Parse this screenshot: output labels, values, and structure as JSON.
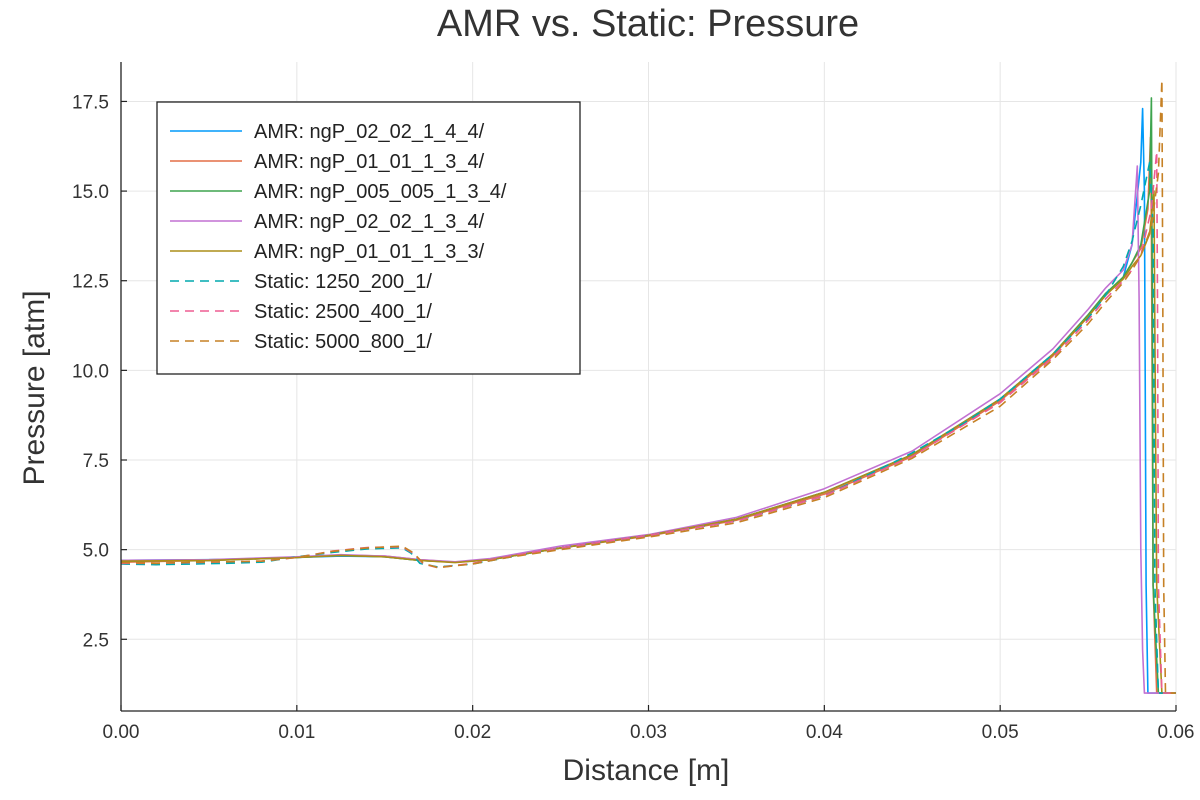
{
  "chart_data": {
    "type": "line",
    "title": "AMR vs. Static: Pressure",
    "xlabel": "Distance [m]",
    "ylabel": "Pressure [atm]",
    "xlim": [
      0.0,
      0.06
    ],
    "ylim": [
      0.5,
      18.6
    ],
    "xticks": [
      "0.00",
      "0.01",
      "0.02",
      "0.03",
      "0.04",
      "0.05",
      "0.06"
    ],
    "yticks": [
      "2.5",
      "5.0",
      "7.5",
      "10.0",
      "12.5",
      "15.0",
      "17.5"
    ],
    "grid": true,
    "legend_position": "top-left",
    "series": [
      {
        "name": "AMR: ngP_02_02_1_4_4/",
        "color": "#009AFA",
        "dash": "solid",
        "x": [
          0.0,
          0.005,
          0.01,
          0.0125,
          0.015,
          0.017,
          0.019,
          0.021,
          0.025,
          0.03,
          0.035,
          0.04,
          0.045,
          0.05,
          0.053,
          0.055,
          0.056,
          0.057,
          0.0575,
          0.058,
          0.0581,
          0.0582,
          0.0583,
          0.0584,
          0.0587,
          0.06
        ],
        "y": [
          4.7,
          4.72,
          4.78,
          4.82,
          4.8,
          4.7,
          4.65,
          4.72,
          5.05,
          5.4,
          5.85,
          6.6,
          7.65,
          9.2,
          10.45,
          11.5,
          12.1,
          12.6,
          13.5,
          15.8,
          17.3,
          15.0,
          4.0,
          1.0,
          1.0,
          1.0
        ]
      },
      {
        "name": "AMR: ngP_01_01_1_3_4/",
        "color": "#E36F47",
        "dash": "solid",
        "x": [
          0.0,
          0.005,
          0.01,
          0.0125,
          0.015,
          0.017,
          0.019,
          0.021,
          0.025,
          0.03,
          0.035,
          0.04,
          0.045,
          0.05,
          0.053,
          0.055,
          0.056,
          0.057,
          0.0575,
          0.058,
          0.0584,
          0.05855,
          0.0586,
          0.0587,
          0.0589,
          0.06
        ],
        "y": [
          4.65,
          4.7,
          4.78,
          4.85,
          4.82,
          4.72,
          4.65,
          4.72,
          5.05,
          5.38,
          5.82,
          6.55,
          7.6,
          9.15,
          10.4,
          11.5,
          12.1,
          12.6,
          13.0,
          13.4,
          14.5,
          16.5,
          14.0,
          4.0,
          1.0,
          1.0
        ]
      },
      {
        "name": "AMR: ngP_005_005_1_3_4/",
        "color": "#3EA44E",
        "dash": "solid",
        "x": [
          0.0,
          0.005,
          0.01,
          0.0125,
          0.015,
          0.017,
          0.019,
          0.021,
          0.025,
          0.03,
          0.035,
          0.04,
          0.045,
          0.05,
          0.053,
          0.055,
          0.056,
          0.057,
          0.0575,
          0.058,
          0.0585,
          0.0586,
          0.05865,
          0.0587,
          0.059,
          0.06
        ],
        "y": [
          4.68,
          4.7,
          4.78,
          4.84,
          4.8,
          4.7,
          4.65,
          4.72,
          5.05,
          5.4,
          5.85,
          6.6,
          7.65,
          9.2,
          10.45,
          11.55,
          12.15,
          12.6,
          13.0,
          13.5,
          15.0,
          17.6,
          12.0,
          4.0,
          1.0,
          1.0
        ]
      },
      {
        "name": "AMR: ngP_02_02_1_3_4/",
        "color": "#C271D2",
        "dash": "solid",
        "x": [
          0.0,
          0.005,
          0.01,
          0.0125,
          0.015,
          0.017,
          0.019,
          0.021,
          0.025,
          0.03,
          0.035,
          0.04,
          0.045,
          0.05,
          0.053,
          0.055,
          0.056,
          0.057,
          0.0575,
          0.0578,
          0.0579,
          0.058,
          0.0581,
          0.0582,
          0.0585,
          0.06
        ],
        "y": [
          4.7,
          4.72,
          4.8,
          4.86,
          4.82,
          4.72,
          4.66,
          4.75,
          5.1,
          5.42,
          5.9,
          6.7,
          7.75,
          9.35,
          10.6,
          11.7,
          12.3,
          12.8,
          13.5,
          15.7,
          12.0,
          5.0,
          2.2,
          1.0,
          1.0,
          1.0
        ]
      },
      {
        "name": "AMR: ngP_01_01_1_3_3/",
        "color": "#AC8D18",
        "dash": "solid",
        "x": [
          0.0,
          0.005,
          0.01,
          0.0125,
          0.015,
          0.017,
          0.019,
          0.021,
          0.025,
          0.03,
          0.035,
          0.04,
          0.045,
          0.05,
          0.053,
          0.055,
          0.056,
          0.057,
          0.0575,
          0.058,
          0.0585,
          0.05875,
          0.0588,
          0.0589,
          0.0592,
          0.06
        ],
        "y": [
          4.68,
          4.7,
          4.78,
          4.84,
          4.8,
          4.7,
          4.64,
          4.72,
          5.05,
          5.4,
          5.85,
          6.6,
          7.65,
          9.2,
          10.45,
          11.5,
          12.1,
          12.55,
          12.9,
          13.2,
          13.8,
          15.0,
          11.0,
          4.0,
          1.0,
          1.0
        ]
      },
      {
        "name": "Static: 1250_200_1/",
        "color": "#00A9AD",
        "dash": "dashed",
        "x": [
          0.0,
          0.002,
          0.004,
          0.006,
          0.008,
          0.01,
          0.012,
          0.014,
          0.016,
          0.0165,
          0.017,
          0.018,
          0.02,
          0.022,
          0.025,
          0.03,
          0.035,
          0.04,
          0.044,
          0.045,
          0.048,
          0.05,
          0.053,
          0.055,
          0.056,
          0.057,
          0.0575,
          0.058,
          0.0585,
          0.0587,
          0.0588,
          0.059,
          0.06
        ],
        "y": [
          4.6,
          4.58,
          4.6,
          4.62,
          4.65,
          4.8,
          4.92,
          5.02,
          5.05,
          4.9,
          4.62,
          4.52,
          4.6,
          4.78,
          5.05,
          5.4,
          5.8,
          6.5,
          7.45,
          7.7,
          8.55,
          9.2,
          10.45,
          11.45,
          12.1,
          12.9,
          13.6,
          14.6,
          15.8,
          14.0,
          4.0,
          1.0,
          1.0
        ]
      },
      {
        "name": "Static: 2500_400_1/",
        "color": "#ED5D92",
        "dash": "dashed",
        "x": [
          0.0,
          0.002,
          0.004,
          0.006,
          0.008,
          0.01,
          0.012,
          0.014,
          0.016,
          0.0166,
          0.0172,
          0.018,
          0.02,
          0.022,
          0.025,
          0.03,
          0.035,
          0.04,
          0.045,
          0.05,
          0.053,
          0.055,
          0.056,
          0.057,
          0.0575,
          0.058,
          0.0586,
          0.0589,
          0.05895,
          0.059,
          0.0592,
          0.06
        ],
        "y": [
          4.62,
          4.62,
          4.64,
          4.66,
          4.68,
          4.78,
          4.96,
          5.06,
          5.08,
          4.9,
          4.6,
          4.5,
          4.62,
          4.8,
          5.05,
          5.4,
          5.8,
          6.5,
          7.6,
          9.1,
          10.35,
          11.4,
          12.0,
          12.5,
          12.8,
          13.2,
          14.5,
          16.1,
          12.0,
          4.0,
          1.0,
          1.0
        ]
      },
      {
        "name": "Static: 5000_800_1/",
        "color": "#C68125",
        "dash": "dashed",
        "x": [
          0.0,
          0.002,
          0.004,
          0.006,
          0.008,
          0.01,
          0.012,
          0.014,
          0.016,
          0.0166,
          0.0172,
          0.018,
          0.02,
          0.022,
          0.025,
          0.03,
          0.035,
          0.04,
          0.045,
          0.05,
          0.053,
          0.055,
          0.056,
          0.057,
          0.0575,
          0.058,
          0.0586,
          0.059,
          0.0592,
          0.05925,
          0.0593,
          0.0594,
          0.06
        ],
        "y": [
          4.64,
          4.62,
          4.65,
          4.66,
          4.68,
          4.78,
          4.95,
          5.05,
          5.1,
          4.92,
          4.62,
          4.5,
          4.6,
          4.78,
          5.0,
          5.35,
          5.75,
          6.45,
          7.55,
          9.0,
          10.3,
          11.3,
          11.9,
          12.45,
          12.8,
          13.2,
          14.0,
          15.5,
          18.1,
          12.0,
          4.0,
          1.0,
          1.0
        ]
      }
    ]
  }
}
